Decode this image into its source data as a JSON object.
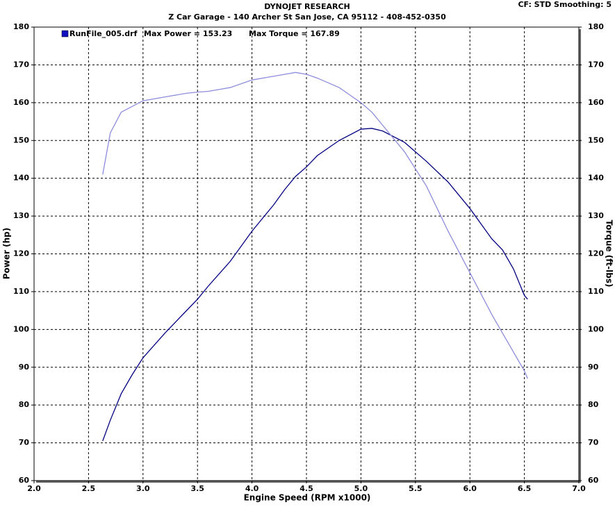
{
  "chart_data": {
    "type": "line",
    "title": "DYNOJET RESEARCH",
    "subtitle": "Z Car Garage - 140 Archer St San Jose, CA 95112 - 408-452-0350",
    "corner_note": "CF: STD  Smoothing: 5",
    "legend": {
      "run": "RunFile_005.drf",
      "power_note": "Max Power = 153.23",
      "torque_note": "Max Torque = 167.89",
      "color": "#1010c0"
    },
    "x_label": "Engine Speed (RPM x1000)",
    "y_label": "Power (hp)",
    "y2_label": "Torque (ft-lbs)",
    "x": [
      2.63,
      2.7,
      2.8,
      2.9,
      3.0,
      3.2,
      3.4,
      3.5,
      3.6,
      3.8,
      4.0,
      4.2,
      4.3,
      4.4,
      4.5,
      4.6,
      4.8,
      5.0,
      5.1,
      5.2,
      5.4,
      5.6,
      5.8,
      6.0,
      6.2,
      6.3,
      6.4,
      6.5,
      6.53
    ],
    "series": [
      {
        "name": "Power",
        "color": "#000080",
        "axis": "y",
        "values": [
          70.5,
          76,
          83,
          88,
          92.5,
          99,
          105,
          108,
          111.5,
          118,
          126,
          133,
          137,
          140.5,
          143,
          146,
          150,
          153,
          153.2,
          152.5,
          149.5,
          144.5,
          139,
          132,
          124,
          121,
          116,
          109,
          108
        ]
      },
      {
        "name": "Torque",
        "color": "#8c8cdc",
        "axis": "y2",
        "values": [
          141,
          152,
          157.5,
          159,
          160.5,
          161.5,
          162.5,
          162.8,
          163,
          164,
          166,
          167,
          167.5,
          168,
          167.5,
          166.5,
          164,
          160,
          157.5,
          154,
          147,
          138,
          126,
          115,
          104,
          99,
          94,
          89,
          87
        ]
      }
    ],
    "xlim": [
      2.0,
      7.0
    ],
    "xticks": [
      {
        "value": 2.0,
        "label": "2.0"
      },
      2.5,
      {
        "value": 3.0,
        "label": "3.0"
      },
      3.5,
      {
        "value": 4.0,
        "label": "4.0"
      },
      4.5,
      {
        "value": 5.0,
        "label": "5.0"
      },
      5.5,
      {
        "value": 6.0,
        "label": "6.0"
      },
      6.5,
      {
        "value": 7.0,
        "label": "7.0"
      }
    ],
    "ylim": [
      60,
      180
    ],
    "yticks": [
      60,
      70,
      80,
      90,
      100,
      110,
      120,
      130,
      140,
      150,
      160,
      170,
      180
    ],
    "y2lim": [
      60,
      180
    ],
    "y2ticks": [
      60,
      70,
      80,
      90,
      100,
      110,
      120,
      130,
      140,
      150,
      160,
      170,
      180
    ],
    "grid": true
  }
}
